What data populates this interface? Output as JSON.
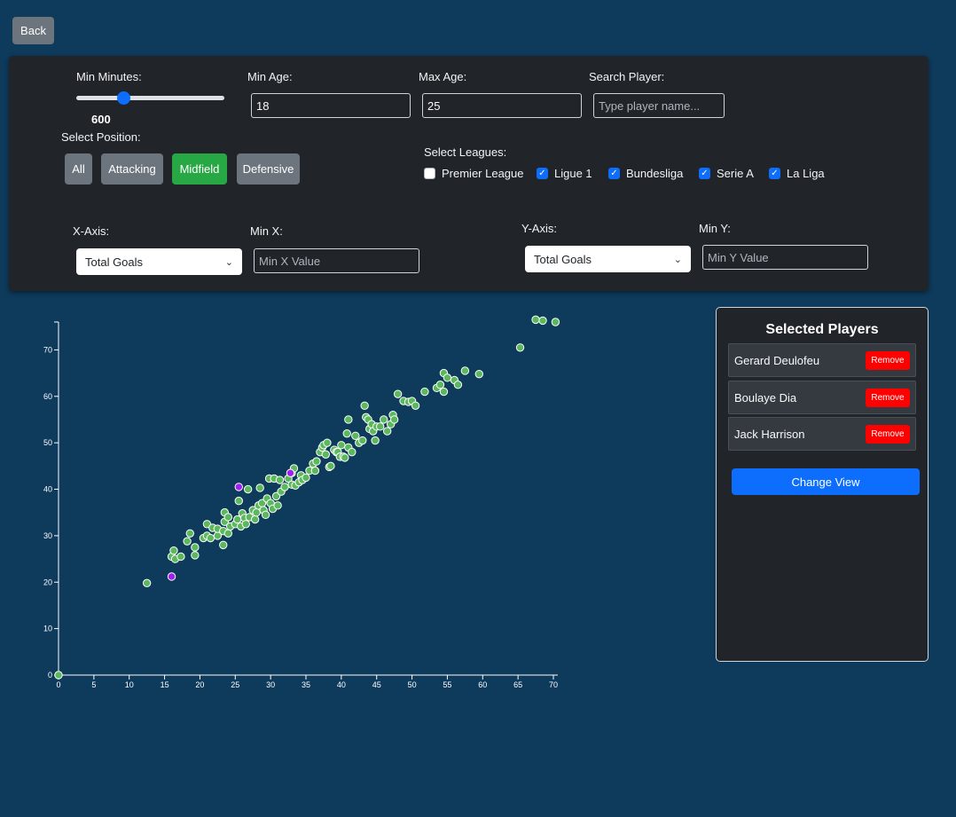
{
  "back_label": "Back",
  "filters": {
    "min_minutes": {
      "label": "Min Minutes:",
      "value": "600",
      "fraction": 0.3
    },
    "min_age": {
      "label": "Min Age:",
      "value": "18"
    },
    "max_age": {
      "label": "Max Age:",
      "value": "25"
    },
    "search": {
      "label": "Search Player:",
      "placeholder": "Type player name..."
    },
    "position": {
      "label": "Select Position:",
      "options": [
        "All",
        "Attacking",
        "Midfield",
        "Defensive"
      ],
      "active": "Midfield"
    },
    "leagues": {
      "label": "Select Leagues:",
      "items": [
        {
          "name": "Premier League",
          "checked": false
        },
        {
          "name": "Ligue 1",
          "checked": true
        },
        {
          "name": "Bundesliga",
          "checked": true
        },
        {
          "name": "Serie A",
          "checked": true
        },
        {
          "name": "La Liga",
          "checked": true
        }
      ]
    },
    "x_axis": {
      "label": "X-Axis:",
      "selected": "Total Goals"
    },
    "min_x": {
      "label": "Min X:",
      "placeholder": "Min X Value"
    },
    "y_axis": {
      "label": "Y-Axis:",
      "selected": "Total Goals"
    },
    "min_y": {
      "label": "Min Y:",
      "placeholder": "Min Y Value"
    }
  },
  "selected_panel": {
    "title": "Selected Players",
    "players": [
      "Gerard Deulofeu",
      "Boulaye Dia",
      "Jack Harrison"
    ],
    "remove_label": "Remove",
    "change_view_label": "Change View"
  },
  "colors": {
    "point": "#5cb85c",
    "selected": "#a020f0",
    "accent": "#0d6efd",
    "active": "#28a745"
  },
  "chart_data": {
    "type": "scatter",
    "xlim": [
      0,
      70
    ],
    "ylim": [
      0,
      76
    ],
    "xticks": [
      0,
      5,
      10,
      15,
      20,
      25,
      30,
      35,
      40,
      45,
      50,
      55,
      60,
      65,
      70
    ],
    "yticks": [
      0,
      10,
      20,
      30,
      40,
      50,
      60,
      70
    ],
    "points": [
      [
        0,
        0
      ],
      [
        12.5,
        19.8
      ],
      [
        16,
        25.5
      ],
      [
        16.3,
        26.8
      ],
      [
        16.5,
        25
      ],
      [
        17.3,
        25.5
      ],
      [
        18.2,
        28.8
      ],
      [
        18.6,
        30.5
      ],
      [
        19.3,
        25.8
      ],
      [
        19.3,
        27.5
      ],
      [
        20.5,
        29.5
      ],
      [
        21,
        30
      ],
      [
        21,
        32.5
      ],
      [
        21.5,
        29.5
      ],
      [
        21.8,
        31.7
      ],
      [
        22.5,
        30
      ],
      [
        22.5,
        31.5
      ],
      [
        23.3,
        28
      ],
      [
        23.3,
        31
      ],
      [
        23.5,
        33
      ],
      [
        23.5,
        35
      ],
      [
        24,
        34
      ],
      [
        24,
        30.5
      ],
      [
        24.3,
        32
      ],
      [
        25,
        32.5
      ],
      [
        25.3,
        33.5
      ],
      [
        25.5,
        37.5
      ],
      [
        25.8,
        32
      ],
      [
        26,
        34.8
      ],
      [
        26.3,
        33.8
      ],
      [
        26.5,
        32.5
      ],
      [
        26.8,
        40
      ],
      [
        27,
        34
      ],
      [
        27.5,
        35.5
      ],
      [
        27.8,
        33.5
      ],
      [
        28,
        35
      ],
      [
        28.3,
        36.5
      ],
      [
        28.5,
        40.3
      ],
      [
        28.8,
        37
      ],
      [
        29,
        35.5
      ],
      [
        29.3,
        34.5
      ],
      [
        29.5,
        38
      ],
      [
        29.8,
        42.3
      ],
      [
        30,
        37
      ],
      [
        30.3,
        35.8
      ],
      [
        30.5,
        42.3
      ],
      [
        30.8,
        38.5
      ],
      [
        31,
        36.5
      ],
      [
        31.3,
        42
      ],
      [
        31.5,
        39.5
      ],
      [
        32,
        40.5
      ],
      [
        32.5,
        42.3
      ],
      [
        33,
        41
      ],
      [
        33,
        43.5
      ],
      [
        33.3,
        44.5
      ],
      [
        33.5,
        40.8
      ],
      [
        34,
        41.5
      ],
      [
        34.3,
        43
      ],
      [
        34.5,
        42
      ],
      [
        35,
        42.5
      ],
      [
        35.5,
        44
      ],
      [
        36,
        45.5
      ],
      [
        36.3,
        44
      ],
      [
        36.5,
        46
      ],
      [
        37,
        48
      ],
      [
        37.3,
        49
      ],
      [
        37.5,
        49.5
      ],
      [
        37.8,
        47.5
      ],
      [
        38,
        50
      ],
      [
        38.3,
        44.8
      ],
      [
        38.5,
        45
      ],
      [
        39,
        48.5
      ],
      [
        39.3,
        48
      ],
      [
        39.5,
        48
      ],
      [
        39.8,
        47
      ],
      [
        40,
        49.5
      ],
      [
        40.3,
        47
      ],
      [
        40.5,
        46.8
      ],
      [
        40.8,
        52
      ],
      [
        41,
        55
      ],
      [
        41,
        49
      ],
      [
        41.5,
        48
      ],
      [
        42,
        51.5
      ],
      [
        42.5,
        50
      ],
      [
        43,
        50.5
      ],
      [
        43.3,
        58
      ],
      [
        43.5,
        55.5
      ],
      [
        43.8,
        55
      ],
      [
        44,
        53
      ],
      [
        44.3,
        54
      ],
      [
        44.5,
        52.5
      ],
      [
        44.8,
        50.5
      ],
      [
        45,
        53.5
      ],
      [
        45.5,
        53.5
      ],
      [
        46,
        55
      ],
      [
        46.5,
        52.5
      ],
      [
        47,
        54
      ],
      [
        47.3,
        56
      ],
      [
        47.5,
        55
      ],
      [
        48,
        60.5
      ],
      [
        48.8,
        59
      ],
      [
        49.5,
        58.8
      ],
      [
        50,
        59
      ],
      [
        50.5,
        58
      ],
      [
        51.8,
        61
      ],
      [
        53.5,
        61.8
      ],
      [
        54,
        62.5
      ],
      [
        54.5,
        61
      ],
      [
        54.5,
        65
      ],
      [
        55,
        64
      ],
      [
        56,
        63.5
      ],
      [
        56.5,
        62.5
      ],
      [
        57.5,
        65.5
      ],
      [
        59.5,
        64.8
      ],
      [
        65.3,
        70.5
      ],
      [
        67.5,
        76.5
      ],
      [
        68.5,
        76.3
      ],
      [
        70.3,
        76
      ]
    ],
    "selected_points": [
      [
        25.5,
        40.5
      ],
      [
        16,
        21.2
      ],
      [
        32.8,
        43.5
      ]
    ]
  }
}
